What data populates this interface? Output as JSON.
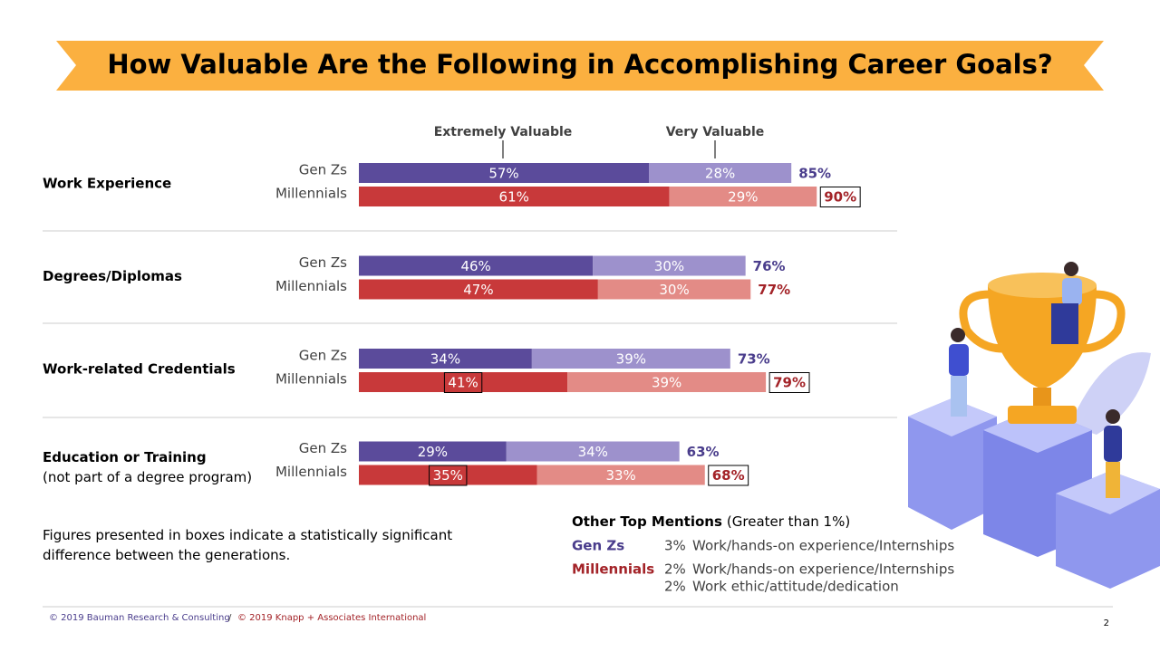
{
  "chart_data": {
    "type": "stacked-bar",
    "title": "How Valuable Are the Following in Accomplishing Career Goals?",
    "segment_names": [
      "Extremely Valuable",
      "Very Valuable"
    ],
    "categories": [
      "Work Experience",
      "Degrees/Diplomas",
      "Work-related Credentials",
      "Education or Training"
    ],
    "category_notes": [
      null,
      null,
      null,
      "(not part of a degree program)"
    ],
    "xlim": [
      0,
      100
    ],
    "series": [
      {
        "name": "Gen Zs",
        "colors": [
          "#5b4b9b",
          "#9d91cc"
        ],
        "total_color": "#4a3d8c",
        "values": [
          [
            57,
            28
          ],
          [
            46,
            30
          ],
          [
            34,
            39
          ],
          [
            29,
            34
          ]
        ],
        "value_labels": [
          [
            "57%",
            "28%"
          ],
          [
            "46%",
            "30%"
          ],
          [
            "34%",
            "39%"
          ],
          [
            "29%",
            "34%"
          ]
        ],
        "boxed": [
          [
            false,
            false
          ],
          [
            false,
            false
          ],
          [
            false,
            false
          ],
          [
            false,
            false
          ]
        ],
        "totals": [
          85,
          76,
          73,
          63
        ],
        "total_labels": [
          "85%",
          "76%",
          "73%",
          "63%"
        ],
        "total_boxed": [
          false,
          false,
          false,
          false
        ]
      },
      {
        "name": "Millennials",
        "colors": [
          "#c8393a",
          "#e38b86"
        ],
        "total_color": "#a32328",
        "values": [
          [
            61,
            29
          ],
          [
            47,
            30
          ],
          [
            41,
            39
          ],
          [
            35,
            33
          ]
        ],
        "value_labels": [
          [
            "61%",
            "29%"
          ],
          [
            "47%",
            "30%"
          ],
          [
            "41%",
            "39%"
          ],
          [
            "35%",
            "33%"
          ]
        ],
        "boxed": [
          [
            false,
            false
          ],
          [
            false,
            false
          ],
          [
            true,
            false
          ],
          [
            true,
            false
          ]
        ],
        "totals": [
          90,
          77,
          79,
          68
        ],
        "total_labels": [
          "90%",
          "77%",
          "79%",
          "68%"
        ],
        "total_boxed": [
          true,
          false,
          true,
          true
        ]
      }
    ]
  },
  "note": "Figures presented in boxes indicate a statistically significant difference between the generations.",
  "other_mentions": {
    "title": "Other Top Mentions",
    "qualifier": "(Greater than 1%)",
    "groups": [
      {
        "name": "Gen Zs",
        "items": [
          {
            "pct": "3%",
            "text": "Work/hands-on experience/Internships"
          }
        ]
      },
      {
        "name": "Millennials",
        "items": [
          {
            "pct": "2%",
            "text": "Work/hands-on experience/Internships"
          },
          {
            "pct": "2%",
            "text": "Work ethic/attitude/dedication"
          }
        ]
      }
    ]
  },
  "footer": {
    "left": "© 2019 Bauman Research & Consulting",
    "separator": "/",
    "right": "© 2019 Knapp + Associates International",
    "page": "2"
  }
}
